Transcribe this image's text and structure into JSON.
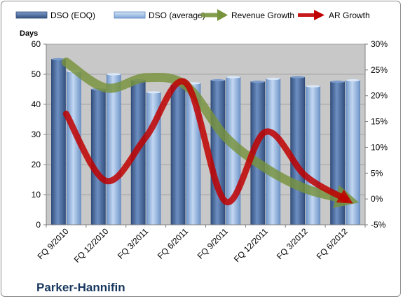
{
  "chart_data": {
    "type": "bar",
    "company_label": "Parker-Hannifin",
    "ylabel": "Days",
    "ylim": [
      0,
      60
    ],
    "yticks": [
      "0",
      "10",
      "20",
      "30",
      "40",
      "50",
      "60"
    ],
    "y2lim": [
      -5,
      30
    ],
    "y2ticks": [
      "-5%",
      "0%",
      "5%",
      "10%",
      "15%",
      "20%",
      "25%",
      "30%"
    ],
    "categories": [
      "FQ 9/2010",
      "FQ 12/2010",
      "FQ 3/2011",
      "FQ 6/2011",
      "FQ 9/2011",
      "FQ 12/2011",
      "FQ 3/2012",
      "FQ 6/2012"
    ],
    "series": [
      {
        "name": "DSO (EOQ)",
        "type": "bar",
        "axis": "left",
        "values": [
          55,
          45,
          48,
          46.5,
          48,
          47.5,
          49,
          47.5
        ]
      },
      {
        "name": "DSO (average)",
        "type": "bar",
        "axis": "left",
        "values": [
          51,
          50,
          44,
          47,
          49,
          48.5,
          46,
          48
        ]
      },
      {
        "name": "Revenue Growth",
        "type": "line",
        "axis": "right",
        "values": [
          26.5,
          21.5,
          23.5,
          22,
          12,
          6,
          2,
          0
        ]
      },
      {
        "name": "AR Growth",
        "type": "line",
        "axis": "right",
        "values": [
          16.5,
          3.5,
          12,
          22.5,
          -0.5,
          13,
          4.5,
          0
        ]
      }
    ],
    "colors": {
      "dso_eoq": "#4a6a9a",
      "dso_avg": "#8fb4e3",
      "revenue_growth": "#77933c",
      "ar_growth": "#c00000",
      "plot_bg": "#c8c8c8"
    }
  }
}
